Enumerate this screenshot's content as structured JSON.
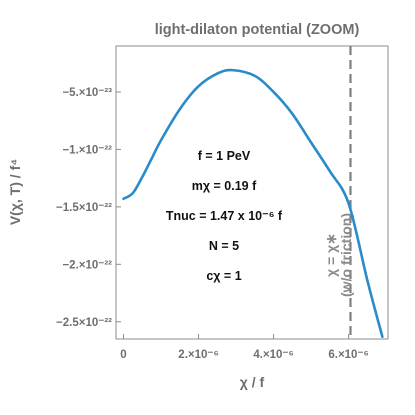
{
  "chart_data": {
    "type": "line",
    "title": "light-dilaton potential (ZOOM)",
    "xlabel": "χ / f",
    "ylabel": "V(χ, T) / f⁴",
    "xlim": [
      -2e-07,
      7.05e-06
    ],
    "ylim": [
      -2.65e-22,
      -1e-23
    ],
    "x_ticks": [
      {
        "value": 0,
        "label": "0"
      },
      {
        "value": 2e-06,
        "label": "2.×10⁻⁶"
      },
      {
        "value": 4e-06,
        "label": "4.×10⁻⁶"
      },
      {
        "value": 6e-06,
        "label": "6.×10⁻⁶"
      }
    ],
    "y_ticks": [
      {
        "value": -5e-23,
        "label": "−5.×10⁻²³"
      },
      {
        "value": -1e-22,
        "label": "−1.×10⁻²²"
      },
      {
        "value": -1.5e-22,
        "label": "−1.5×10⁻²²"
      },
      {
        "value": -2e-22,
        "label": "−2.×10⁻²²"
      },
      {
        "value": -2.5e-22,
        "label": "−2.5×10⁻²²"
      }
    ],
    "series": [
      {
        "color": "#2a8bc9",
        "x": [
          0,
          2.5e-07,
          5e-07,
          7.5e-07,
          1e-06,
          1.5e-06,
          2e-06,
          2.5e-06,
          2.9e-06,
          3.5e-06,
          4e-06,
          4.5e-06,
          5e-06,
          5.5e-06,
          6e-06,
          6.5e-06,
          6.9e-06
        ],
        "y": [
          -1.43e-22,
          -1.38e-22,
          -1.24e-22,
          -1.08e-22,
          -9.2e-23,
          -6.5e-23,
          -4.5e-23,
          -3.4e-23,
          -3.1e-23,
          -3.6e-23,
          -5e-23,
          -6.9e-23,
          -9.4e-23,
          -1.19e-22,
          -1.47e-22,
          -2.14e-22,
          -2.63e-22
        ]
      }
    ],
    "vline": {
      "x": 6.05e-06,
      "color": "#7f7f7f",
      "style": "dashed"
    },
    "vline_label": [
      "χ = χ∗",
      "(w/o friction)"
    ],
    "annotations": [
      {
        "label": "f = 1 PeV"
      },
      {
        "label": "mχ = 0.19 f"
      },
      {
        "label": "Tnuc = 1.47 x 10⁻⁶ f"
      },
      {
        "label": "N = 5"
      },
      {
        "label": "cχ = 1"
      }
    ],
    "legend": "none",
    "grid": false
  }
}
